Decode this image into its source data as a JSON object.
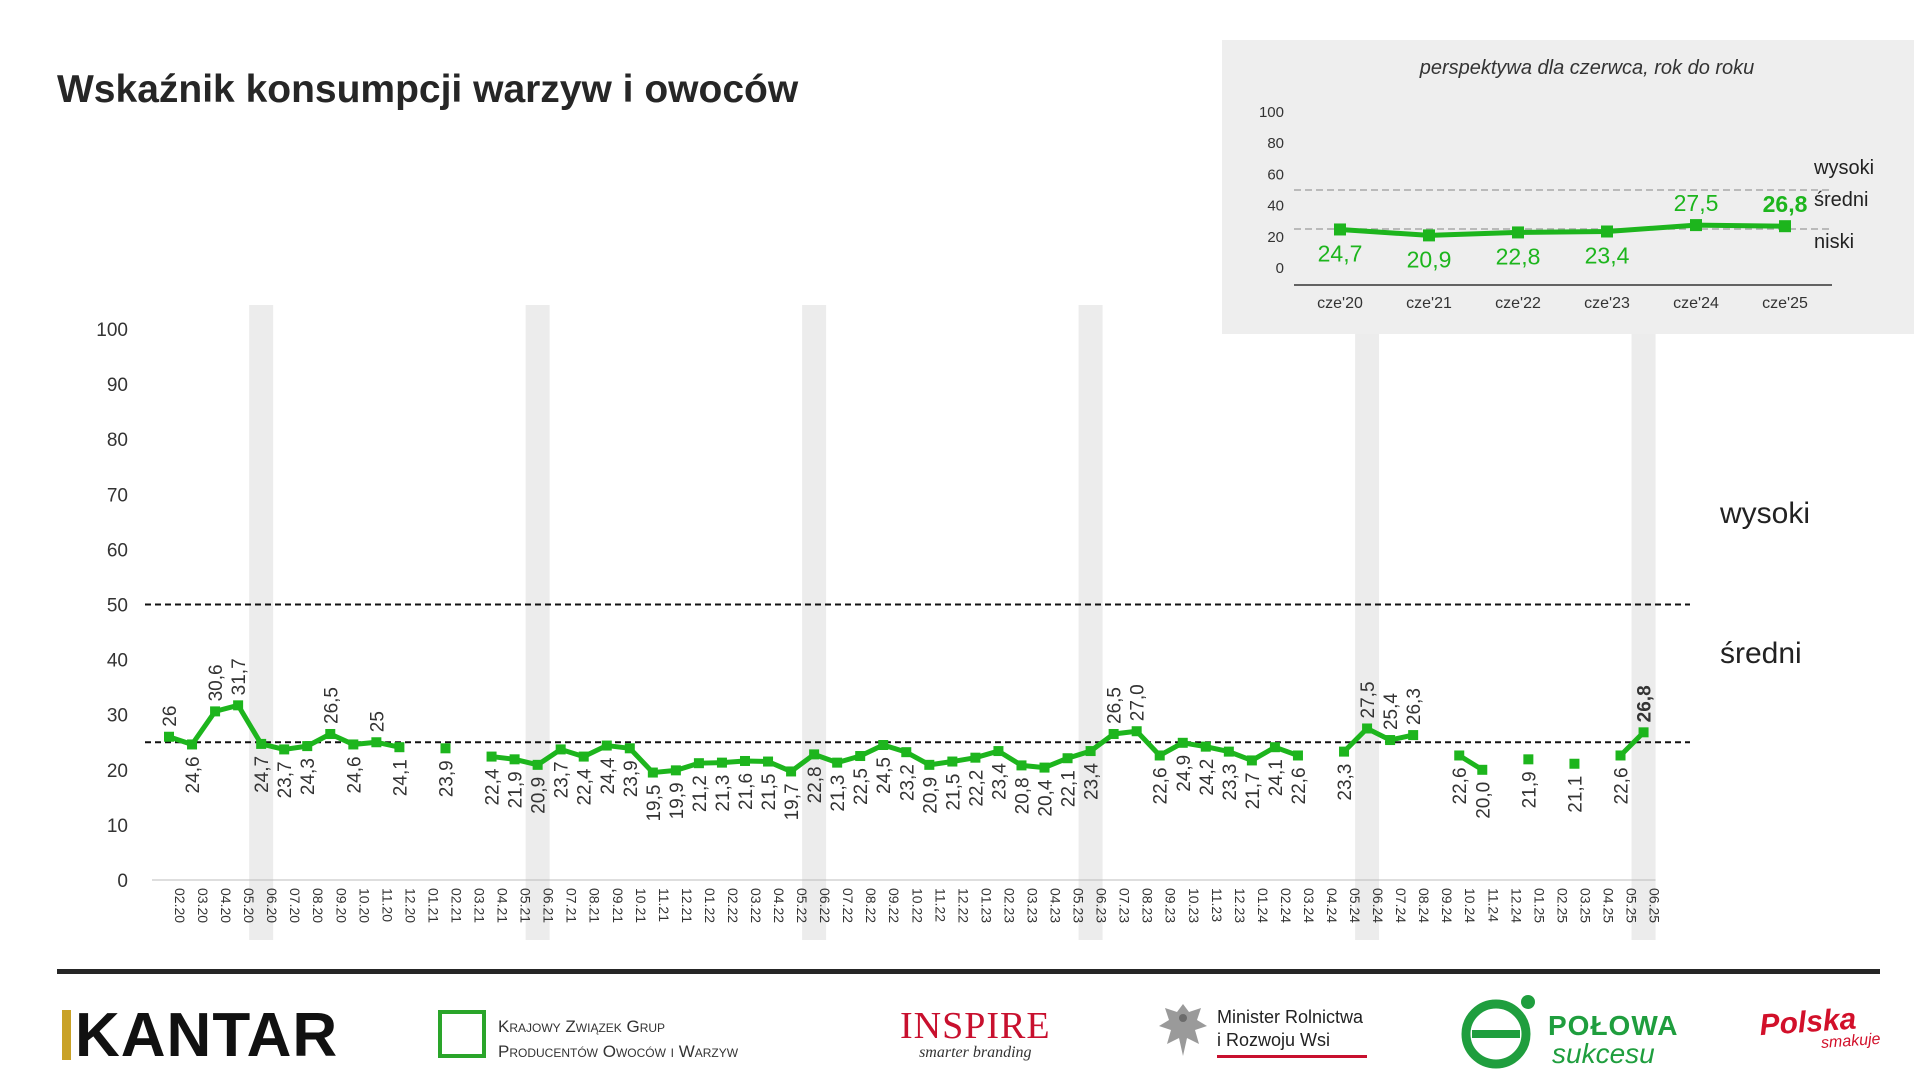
{
  "title": "Wskaźnik konsumpcji warzyw i owoców",
  "band_labels": {
    "high": "wysoki",
    "mid": "średni",
    "low": "niski"
  },
  "colors": {
    "line": "#1db51d",
    "highlight_band": "#ececec",
    "text": "#262626",
    "inset_bg": "#eeeeee"
  },
  "chart_data": [
    {
      "type": "line",
      "categories": [
        "02.20",
        "03.20",
        "04.20",
        "05.20",
        "06.20",
        "07.20",
        "08.20",
        "09.20",
        "10.20",
        "11.20",
        "12.20",
        "01.21",
        "02.21",
        "03.21",
        "04.21",
        "05.21",
        "06.21",
        "07.21",
        "08.21",
        "09.21",
        "10.21",
        "11.21",
        "12.21",
        "01.22",
        "02.22",
        "03.22",
        "04.22",
        "05.22",
        "06.22",
        "07.22",
        "08.22",
        "09.22",
        "10.22",
        "11.22",
        "12.22",
        "01.23",
        "02.23",
        "03.23",
        "04.23",
        "05.23",
        "06.23",
        "07.23",
        "08.23",
        "09.23",
        "10.23",
        "11.23",
        "12.23",
        "01.24",
        "02.24",
        "03.24",
        "04.24",
        "05.24",
        "06.24",
        "07.24",
        "08.24",
        "09.24",
        "10.24",
        "11.24",
        "12.24",
        "01.25",
        "02.25",
        "03.25",
        "04.25",
        "05.25",
        "06.25"
      ],
      "values": [
        26,
        24.6,
        30.6,
        31.7,
        24.7,
        23.7,
        24.3,
        26.5,
        24.6,
        25,
        24.1,
        null,
        23.9,
        null,
        22.4,
        21.9,
        20.9,
        23.7,
        22.4,
        24.4,
        23.9,
        19.5,
        19.9,
        21.2,
        21.3,
        21.6,
        21.5,
        19.7,
        22.8,
        21.3,
        22.5,
        24.5,
        23.2,
        20.9,
        21.5,
        22.2,
        23.4,
        20.8,
        20.4,
        22.1,
        23.4,
        26.5,
        27.0,
        22.6,
        24.9,
        24.2,
        23.3,
        21.7,
        24.1,
        22.6,
        null,
        23.3,
        27.5,
        25.4,
        26.3,
        null,
        22.6,
        20.0,
        null,
        21.9,
        null,
        21.1,
        null,
        22.6,
        26.8
      ],
      "labels": [
        "26",
        "24,6",
        "30,6",
        "31,7",
        "24,7",
        "23,7",
        "24,3",
        "26,5",
        "24,6",
        "25",
        "24,1",
        "",
        "23,9",
        "",
        "22,4",
        "21,9",
        "20,9",
        "23,7",
        "22,4",
        "24,4",
        "23,9",
        "19,5",
        "19,9",
        "21,2",
        "21,3",
        "21,6",
        "21,5",
        "19,7",
        "22,8",
        "21,3",
        "22,5",
        "24,5",
        "23,2",
        "20,9",
        "21,5",
        "22,2",
        "23,4",
        "20,8",
        "20,4",
        "22,1",
        "23,4",
        "26,5",
        "27,0",
        "22,6",
        "24,9",
        "24,2",
        "23,3",
        "21,7",
        "24,1",
        "22,6",
        "",
        "23,3",
        "27,5",
        "25,4",
        "26,3",
        "",
        "22,6",
        "20,0",
        "",
        "21,9",
        "",
        "21,1",
        "",
        "22,6",
        "26,8"
      ],
      "label_pos": [
        "a",
        "b",
        "a",
        "a",
        "b",
        "b",
        "b",
        "a",
        "b",
        "a",
        "b",
        "",
        "b",
        "",
        "b",
        "b",
        "b",
        "b",
        "b",
        "b",
        "b",
        "b",
        "b",
        "b",
        "b",
        "b",
        "b",
        "b",
        "b",
        "b",
        "b",
        "b",
        "b",
        "b",
        "b",
        "b",
        "b",
        "b",
        "b",
        "b",
        "b",
        "a",
        "a",
        "b",
        "b",
        "b",
        "b",
        "b",
        "b",
        "b",
        "",
        "b",
        "a",
        "a",
        "a",
        "",
        "b",
        "b",
        "",
        "b",
        "",
        "b",
        "",
        "b",
        "a"
      ],
      "highlight_categories": [
        "06.20",
        "06.21",
        "06.22",
        "06.23",
        "06.24",
        "06.25"
      ],
      "yticks": [
        0,
        10,
        20,
        30,
        40,
        50,
        60,
        70,
        80,
        90,
        100
      ],
      "ylim": [
        0,
        100
      ],
      "reference_lines": [
        25,
        50
      ],
      "grid": false
    },
    {
      "type": "line",
      "title": "perspektywa dla czerwca, rok do roku",
      "categories": [
        "cze'20",
        "cze'21",
        "cze'22",
        "cze'23",
        "cze'24",
        "cze'25"
      ],
      "values": [
        24.7,
        20.9,
        22.8,
        23.4,
        27.5,
        26.8
      ],
      "labels": [
        "24,7",
        "20,9",
        "22,8",
        "23,4",
        "27,5",
        "26,8"
      ],
      "label_pos": [
        "b",
        "b",
        "b",
        "b",
        "a",
        "a"
      ],
      "yticks": [
        0,
        20,
        40,
        60,
        80,
        100
      ],
      "ylim": [
        0,
        100
      ],
      "reference_lines": [
        25,
        50
      ],
      "grid": false
    }
  ],
  "logos": {
    "kantar": "KANTAR",
    "kzg_line1": "Krajowy Związek Grup",
    "kzg_line2": "Producentów Owoców i Warzyw",
    "inspire": "INSPIRE",
    "inspire_tagline": "smarter branding",
    "minister_line1": "Minister Rolnictwa",
    "minister_line2": "i Rozwoju Wsi",
    "polowa_line1": "POŁOWA",
    "polowa_line2": "sukcesu",
    "polska_line1": "Polska",
    "polska_line2": "smakuje"
  }
}
